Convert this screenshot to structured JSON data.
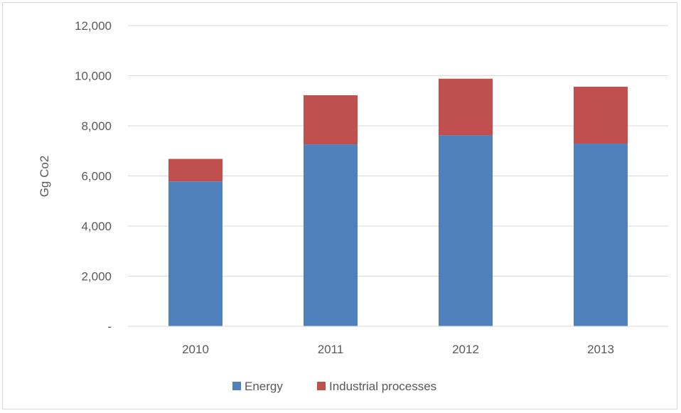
{
  "chart_data": {
    "type": "bar",
    "stacked": true,
    "title": "",
    "xlabel": "",
    "ylabel": "Gg Co2",
    "categories": [
      "2010",
      "2011",
      "2012",
      "2013"
    ],
    "series": [
      {
        "name": "Energy",
        "color": "#4f81bd",
        "values": [
          5780,
          7260,
          7620,
          7290
        ]
      },
      {
        "name": "Industrial processes",
        "color": "#c0504d",
        "values": [
          900,
          1960,
          2260,
          2270
        ]
      }
    ],
    "ylim": [
      0,
      12000
    ],
    "yticks": [
      0,
      2000,
      4000,
      6000,
      8000,
      10000,
      12000
    ],
    "ytick_labels": [
      "-",
      "2,000",
      "4,000",
      "6,000",
      "8,000",
      "10,000",
      "12,000"
    ],
    "grid": true,
    "legend_position": "bottom"
  }
}
